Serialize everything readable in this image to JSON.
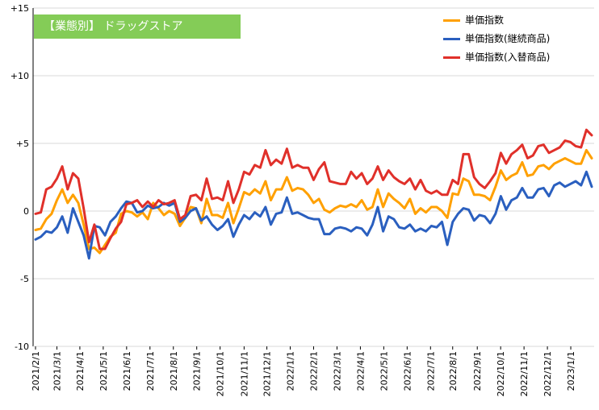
{
  "chart_data": {
    "type": "line",
    "title": "【業態別】 ドラッグストア",
    "xlabel": "",
    "ylabel": "",
    "ylim": [
      -10,
      15
    ],
    "y_ticks": [
      "+15",
      "+10",
      "+5",
      "0",
      "-5",
      "-10"
    ],
    "y_tick_values": [
      15,
      10,
      5,
      0,
      -5,
      -10
    ],
    "grid": "horizontal",
    "legend_position": "top-right",
    "x_tick_labels": [
      "2021/2/1",
      "2021/3/1",
      "2021/4/1",
      "2021/5/1",
      "2021/6/1",
      "2021/7/1",
      "2021/8/1",
      "2021/9/1",
      "2021/10/1",
      "2021/11/1",
      "2021/12/1",
      "2022/1/1",
      "2022/2/1",
      "2022/3/1",
      "2022/4/1",
      "2022/5/1",
      "2022/6/1",
      "2022/7/1",
      "2022/8/1",
      "2022/9/1",
      "2022/10/1",
      "2022/11/1",
      "2022/12/1",
      "2023/1/1"
    ],
    "x": [
      "2021/2/1",
      "2021/2/8",
      "2021/2/15",
      "2021/2/22",
      "2021/3/1",
      "2021/3/8",
      "2021/3/15",
      "2021/3/22",
      "2021/3/29",
      "2021/4/5",
      "2021/4/12",
      "2021/4/19",
      "2021/4/26",
      "2021/5/3",
      "2021/5/10",
      "2021/5/17",
      "2021/5/24",
      "2021/5/31",
      "2021/6/7",
      "2021/6/14",
      "2021/6/21",
      "2021/6/28",
      "2021/7/5",
      "2021/7/12",
      "2021/7/19",
      "2021/7/26",
      "2021/8/2",
      "2021/8/9",
      "2021/8/16",
      "2021/8/23",
      "2021/8/30",
      "2021/9/6",
      "2021/9/13",
      "2021/9/20",
      "2021/9/27",
      "2021/10/4",
      "2021/10/11",
      "2021/10/18",
      "2021/10/25",
      "2021/11/1",
      "2021/11/8",
      "2021/11/15",
      "2021/11/22",
      "2021/11/29",
      "2021/12/6",
      "2021/12/13",
      "2021/12/20",
      "2021/12/27",
      "2022/1/3",
      "2022/1/10",
      "2022/1/17",
      "2022/1/24",
      "2022/1/31",
      "2022/2/7",
      "2022/2/14",
      "2022/2/21",
      "2022/2/28",
      "2022/3/7",
      "2022/3/14",
      "2022/3/21",
      "2022/3/28",
      "2022/4/4",
      "2022/4/11",
      "2022/4/18",
      "2022/4/25",
      "2022/5/2",
      "2022/5/9",
      "2022/5/16",
      "2022/5/23",
      "2022/5/30",
      "2022/6/6",
      "2022/6/13",
      "2022/6/20",
      "2022/6/27",
      "2022/7/4",
      "2022/7/11",
      "2022/7/18",
      "2022/7/25",
      "2022/8/1",
      "2022/8/8",
      "2022/8/15",
      "2022/8/22",
      "2022/8/29",
      "2022/9/5",
      "2022/9/12",
      "2022/9/19",
      "2022/9/26",
      "2022/10/3",
      "2022/10/10",
      "2022/10/17",
      "2022/10/24",
      "2022/10/31",
      "2022/11/7",
      "2022/11/14",
      "2022/11/21",
      "2022/11/28",
      "2022/12/5",
      "2022/12/12",
      "2022/12/19",
      "2022/12/26",
      "2023/1/2",
      "2023/1/9",
      "2023/1/16",
      "2023/1/23",
      "2023/1/30"
    ],
    "series": [
      {
        "name": "単価指数",
        "color": "#ffa000",
        "values": [
          -1.4,
          -1.3,
          -0.6,
          -0.2,
          0.8,
          1.6,
          0.6,
          1.2,
          0.6,
          -1.0,
          -2.8,
          -2.7,
          -3.1,
          -2.5,
          -1.9,
          -1.6,
          -0.2,
          0.0,
          -0.1,
          -0.4,
          -0.1,
          -0.6,
          0.6,
          0.2,
          -0.3,
          0.0,
          -0.2,
          -1.1,
          -0.5,
          0.3,
          0.2,
          -0.9,
          0.9,
          -0.3,
          -0.3,
          -0.5,
          0.6,
          -0.9,
          0.2,
          1.4,
          1.2,
          1.6,
          1.3,
          2.2,
          0.8,
          1.6,
          1.6,
          2.5,
          1.5,
          1.7,
          1.6,
          1.2,
          0.6,
          0.9,
          0.1,
          -0.1,
          0.2,
          0.4,
          0.3,
          0.5,
          0.3,
          0.8,
          0.1,
          0.3,
          1.6,
          0.3,
          1.3,
          0.9,
          0.6,
          0.2,
          0.9,
          -0.2,
          0.2,
          -0.1,
          0.3,
          0.3,
          0.0,
          -0.5,
          1.3,
          1.2,
          2.4,
          2.2,
          1.2,
          1.2,
          1.1,
          0.8,
          1.8,
          3.0,
          2.3,
          2.6,
          2.8,
          3.6,
          2.6,
          2.7,
          3.3,
          3.4,
          3.1,
          3.5,
          3.7,
          3.9,
          3.7,
          3.5,
          3.5,
          4.5,
          3.9
        ]
      },
      {
        "name": "単価指数(継続商品)",
        "color": "#2a5fbf",
        "values": [
          -2.1,
          -1.9,
          -1.5,
          -1.6,
          -1.2,
          -0.4,
          -1.6,
          0.2,
          -0.8,
          -1.8,
          -3.5,
          -1.1,
          -1.2,
          -1.8,
          -0.8,
          -0.4,
          0.2,
          0.7,
          0.6,
          -0.1,
          0.0,
          0.4,
          0.2,
          0.3,
          0.6,
          0.4,
          0.6,
          -0.8,
          -0.5,
          0.0,
          0.2,
          -0.7,
          -0.4,
          -1.0,
          -1.4,
          -1.1,
          -0.6,
          -1.9,
          -1.0,
          -0.3,
          -0.6,
          -0.1,
          -0.4,
          0.3,
          -1.0,
          -0.2,
          -0.1,
          1.0,
          -0.2,
          -0.1,
          -0.3,
          -0.5,
          -0.6,
          -0.6,
          -1.7,
          -1.7,
          -1.3,
          -1.2,
          -1.3,
          -1.5,
          -1.2,
          -1.3,
          -1.8,
          -1.0,
          0.3,
          -1.5,
          -0.4,
          -0.6,
          -1.2,
          -1.3,
          -1.0,
          -1.5,
          -1.3,
          -1.5,
          -1.1,
          -1.2,
          -0.8,
          -2.5,
          -0.8,
          -0.2,
          0.2,
          0.1,
          -0.7,
          -0.3,
          -0.4,
          -0.9,
          -0.2,
          1.1,
          0.1,
          0.8,
          1.0,
          1.7,
          1.0,
          1.0,
          1.6,
          1.7,
          1.1,
          1.9,
          2.1,
          1.8,
          2.0,
          2.2,
          1.9,
          2.9,
          1.8
        ]
      },
      {
        "name": "単価指数(入替商品)",
        "color": "#e0302a",
        "values": [
          -0.2,
          -0.1,
          1.6,
          1.8,
          2.4,
          3.3,
          1.6,
          2.8,
          2.4,
          0.2,
          -2.3,
          -1.0,
          -2.8,
          -2.8,
          -2.0,
          -1.3,
          -0.8,
          0.5,
          0.6,
          0.8,
          0.3,
          0.7,
          0.3,
          0.8,
          0.5,
          0.6,
          0.8,
          -0.6,
          -0.3,
          1.1,
          1.2,
          0.8,
          2.4,
          0.9,
          1.0,
          0.8,
          2.2,
          0.6,
          1.6,
          2.9,
          2.7,
          3.4,
          3.2,
          4.5,
          3.4,
          3.8,
          3.5,
          4.6,
          3.2,
          3.4,
          3.2,
          3.2,
          2.3,
          3.1,
          3.6,
          2.2,
          2.1,
          2.0,
          2.0,
          2.9,
          2.4,
          2.8,
          2.0,
          2.4,
          3.3,
          2.3,
          3.0,
          2.5,
          2.2,
          2.0,
          2.4,
          1.6,
          2.3,
          1.5,
          1.3,
          1.5,
          1.2,
          1.2,
          2.3,
          2.0,
          4.2,
          4.2,
          2.5,
          2.0,
          1.7,
          2.2,
          2.8,
          4.3,
          3.5,
          4.2,
          4.5,
          4.9,
          3.9,
          4.1,
          4.8,
          4.9,
          4.3,
          4.5,
          4.7,
          5.2,
          5.1,
          4.8,
          4.7,
          6.0,
          5.6
        ]
      }
    ]
  }
}
